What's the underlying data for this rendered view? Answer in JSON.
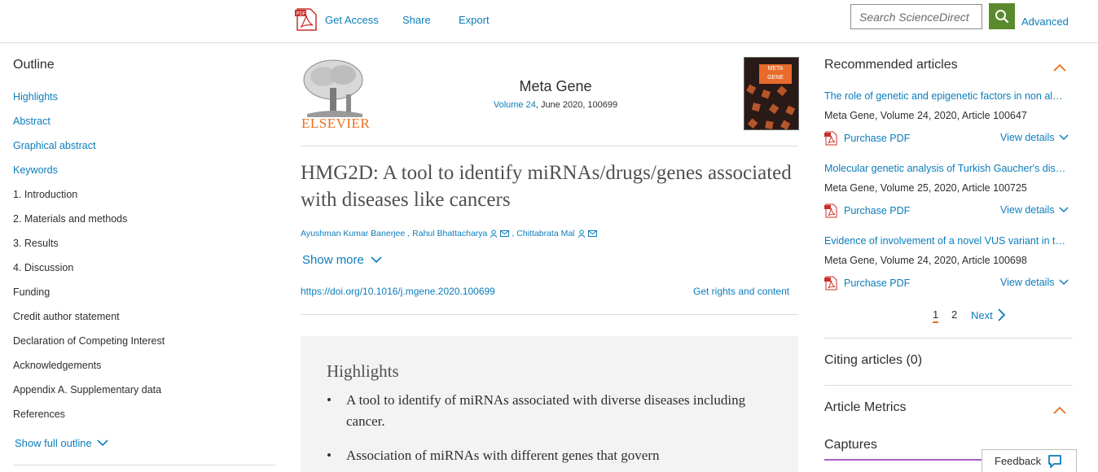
{
  "topbar": {
    "get_access": "Get Access",
    "share": "Share",
    "export": "Export",
    "search_placeholder": "Search ScienceDirect",
    "advanced": "Advanced"
  },
  "outline": {
    "title": "Outline",
    "items": [
      {
        "label": "Highlights",
        "link": true
      },
      {
        "label": "Abstract",
        "link": true
      },
      {
        "label": "Graphical abstract",
        "link": true
      },
      {
        "label": "Keywords",
        "link": true
      },
      {
        "label": "1. Introduction",
        "link": false
      },
      {
        "label": "2. Materials and methods",
        "link": false
      },
      {
        "label": "3. Results",
        "link": false
      },
      {
        "label": "4. Discussion",
        "link": false
      },
      {
        "label": "Funding",
        "link": false
      },
      {
        "label": "Credit author statement",
        "link": false
      },
      {
        "label": "Declaration of Competing Interest",
        "link": false
      },
      {
        "label": "Acknowledgements",
        "link": false
      },
      {
        "label": "Appendix A. Supplementary data",
        "link": false
      },
      {
        "label": "References",
        "link": false
      }
    ],
    "show_full": "Show full outline"
  },
  "article": {
    "publisher": "ELSEVIER",
    "journal": "Meta Gene",
    "volume": "Volume 24",
    "date_id": ", June 2020, 100699",
    "cover_label_1": "META",
    "cover_label_2": "GENE",
    "title": "HMG2D: A tool to identify miRNAs/drugs/genes associated with diseases like cancers",
    "authors": [
      "Ayushman Kumar Banerjee",
      "Rahul Bhattacharya",
      "Chittabrata Mal"
    ],
    "author_sep": ",",
    "show_more": "Show more",
    "doi": "https://doi.org/10.1016/j.mgene.2020.100699",
    "rights": "Get rights and content",
    "highlights_title": "Highlights",
    "highlights": [
      "A tool to identify of miRNAs associated with diverse diseases including cancer.",
      "Association of miRNAs with different genes that govern"
    ]
  },
  "recommended": {
    "title": "Recommended articles",
    "articles": [
      {
        "title": "The role of genetic and epigenetic factors in non al…",
        "meta": "Meta Gene, Volume 24, 2020, Article 100647"
      },
      {
        "title": "Molecular genetic analysis of Turkish Gaucher's dis…",
        "meta": "Meta Gene, Volume 25, 2020, Article 100725"
      },
      {
        "title": "Evidence of involvement of a novel VUS variant in t…",
        "meta": "Meta Gene, Volume 24, 2020, Article 100698"
      }
    ],
    "purchase_pdf": "Purchase PDF",
    "view_details": "View details",
    "pages": [
      "1",
      "2"
    ],
    "next": "Next"
  },
  "citing": "Citing articles (0)",
  "metrics": "Article Metrics",
  "captures": "Captures",
  "feedback": "Feedback",
  "colors": {
    "link": "#0c7dbb",
    "accent": "#e9711c",
    "search_button": "#5a8a2c",
    "captures_bar": "#a85ec3"
  }
}
